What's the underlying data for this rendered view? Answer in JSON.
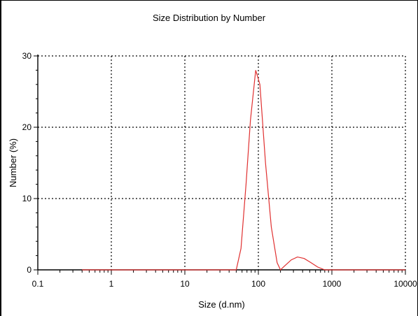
{
  "chart_data": {
    "type": "line",
    "title": "Size Distribution by Number",
    "xlabel": "Size (d.nm)",
    "ylabel": "Number (%)",
    "xscale": "log",
    "xlim": [
      0.1,
      10000
    ],
    "ylim": [
      0,
      30
    ],
    "x_ticks": [
      0.1,
      1,
      10,
      100,
      1000,
      10000
    ],
    "x_tick_labels": [
      "0.1",
      "1",
      "10",
      "100",
      "1000",
      "10000"
    ],
    "y_ticks": [
      0,
      10,
      20,
      30
    ],
    "y_tick_labels": [
      "0",
      "10",
      "20",
      "30"
    ],
    "grid": true,
    "legend": "none",
    "line_color": "#e03030",
    "series": [
      {
        "points": [
          [
            0.4,
            0
          ],
          [
            10,
            0
          ],
          [
            50,
            0
          ],
          [
            58,
            3
          ],
          [
            68,
            12
          ],
          [
            78,
            21
          ],
          [
            92,
            28
          ],
          [
            105,
            26
          ],
          [
            125,
            15
          ],
          [
            150,
            6
          ],
          [
            180,
            1
          ],
          [
            200,
            0
          ],
          [
            230,
            0.6
          ],
          [
            280,
            1.4
          ],
          [
            340,
            1.8
          ],
          [
            420,
            1.6
          ],
          [
            520,
            1.0
          ],
          [
            640,
            0.4
          ],
          [
            800,
            0
          ],
          [
            1000,
            0
          ],
          [
            10000,
            0
          ]
        ]
      }
    ]
  }
}
